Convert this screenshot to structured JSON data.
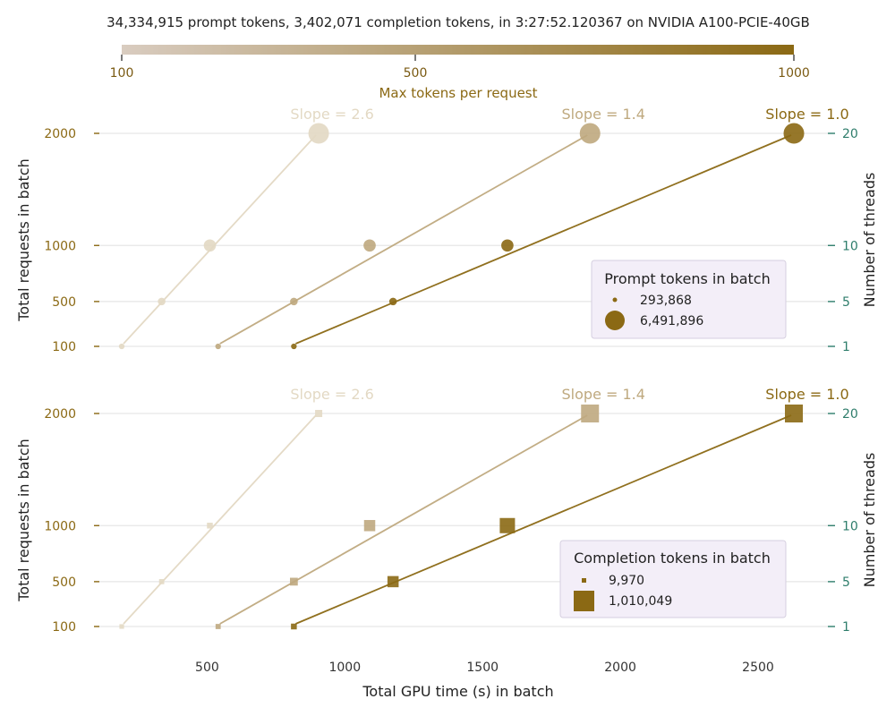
{
  "suptitle": "34,334,915 prompt tokens, 3,402,071 completion tokens, in 3:27:52.120367 on NVIDIA A100-PCIE-40GB",
  "colorbar": {
    "label": "Max tokens per request",
    "ticks": [
      "100",
      "500",
      "1000"
    ],
    "color_min": "#d9ccc0",
    "color_max": "#8b6914"
  },
  "colors": {
    "max_tokens_100": "#e3d9c4",
    "max_tokens_500": "#bfa97f",
    "max_tokens_1000": "#8b6914",
    "left_axis_ticks": "#8b6914",
    "right_axis_ticks": "#2e7d6b",
    "legend_background": "#f3eef8"
  },
  "chart_data": [
    {
      "type": "scatter",
      "panel": "top",
      "marker": "circle",
      "xlabel": "",
      "ylabel": "Total requests in batch",
      "y2label": "Number of threads",
      "yticks": [
        "100",
        "500",
        "1000",
        "2000"
      ],
      "y2ticks": [
        "1",
        "5",
        "10",
        "20"
      ],
      "grid": "horizontal",
      "legend": {
        "title": "Prompt tokens in batch",
        "entries": [
          "293,868",
          "6,491,896"
        ],
        "placement": "center-right"
      },
      "series": [
        {
          "color": "#e3d9c4",
          "slope_label": "Slope = 2.6",
          "max_tokens": 100,
          "x": [
            190,
            335,
            510,
            905
          ],
          "y": [
            100,
            500,
            1000,
            2000
          ],
          "size": [
            0.02,
            0.15,
            0.45,
            1.0
          ]
        },
        {
          "color": "#bfa97f",
          "slope_label": "Slope = 1.4",
          "max_tokens": 500,
          "x": [
            540,
            815,
            1090,
            1890
          ],
          "y": [
            100,
            500,
            1000,
            2000
          ],
          "size": [
            0.02,
            0.15,
            0.45,
            1.0
          ]
        },
        {
          "color": "#8b6914",
          "slope_label": "Slope = 1.0",
          "max_tokens": 1000,
          "x": [
            815,
            1175,
            1590,
            2630
          ],
          "y": [
            100,
            500,
            1000,
            2000
          ],
          "size": [
            0.02,
            0.15,
            0.45,
            1.0
          ]
        }
      ]
    },
    {
      "type": "scatter",
      "panel": "bottom",
      "marker": "square",
      "xlabel": "Total GPU time (s) in batch",
      "ylabel": "Total requests in batch",
      "y2label": "Number of threads",
      "xticks": [
        "500",
        "1000",
        "1500",
        "2000",
        "2500"
      ],
      "yticks": [
        "100",
        "500",
        "1000",
        "2000"
      ],
      "y2ticks": [
        "1",
        "5",
        "10",
        "20"
      ],
      "grid": "horizontal",
      "legend": {
        "title": "Completion tokens in batch",
        "entries": [
          "9,970",
          "1,010,049"
        ],
        "placement": "center-right"
      },
      "series": [
        {
          "color": "#e3d9c4",
          "slope_label": "Slope = 2.6",
          "max_tokens": 100,
          "x": [
            190,
            335,
            510,
            905
          ],
          "y": [
            100,
            500,
            1000,
            2000
          ],
          "size": [
            0.01,
            0.05,
            0.1,
            0.2
          ]
        },
        {
          "color": "#bfa97f",
          "slope_label": "Slope = 1.4",
          "max_tokens": 500,
          "x": [
            540,
            815,
            1090,
            1890
          ],
          "y": [
            100,
            500,
            1000,
            2000
          ],
          "size": [
            0.05,
            0.25,
            0.5,
            1.0
          ]
        },
        {
          "color": "#8b6914",
          "slope_label": "Slope = 1.0",
          "max_tokens": 1000,
          "x": [
            815,
            1175,
            1590,
            2630
          ],
          "y": [
            100,
            500,
            1000,
            2000
          ],
          "size": [
            0.1,
            0.5,
            0.8,
            1.0
          ]
        }
      ]
    }
  ]
}
